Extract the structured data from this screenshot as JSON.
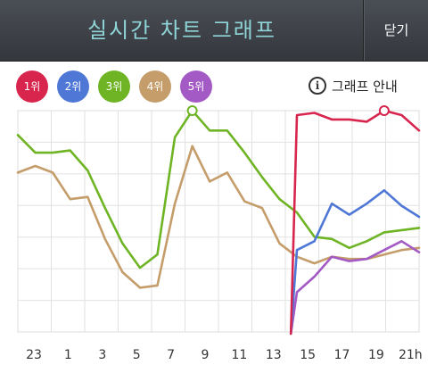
{
  "header": {
    "title": "실시간 차트 그래프",
    "close_label": "닫기"
  },
  "legend": [
    {
      "label": "1위",
      "color": "#d8254e"
    },
    {
      "label": "2위",
      "color": "#4f78d6"
    },
    {
      "label": "3위",
      "color": "#6eb424"
    },
    {
      "label": "4위",
      "color": "#c49d6a"
    },
    {
      "label": "5위",
      "color": "#a35ac4"
    }
  ],
  "guide": {
    "icon": "info-icon",
    "glyph": "i",
    "label": "그래프 안내"
  },
  "chart_data": {
    "type": "line",
    "x_tick_labels": [
      "23",
      "1",
      "3",
      "5",
      "7",
      "9",
      "11",
      "13",
      "15",
      "17",
      "19",
      "21h"
    ],
    "x": [
      22,
      23,
      0,
      1,
      2,
      3,
      4,
      5,
      6,
      7,
      8,
      9,
      10,
      11,
      12,
      13,
      14,
      15,
      16,
      17,
      18,
      19,
      20,
      21
    ],
    "y_direction": "rank position, top = best",
    "grid": true,
    "series": [
      {
        "name": "1위",
        "color": "#d8254e",
        "values": [
          null,
          null,
          null,
          null,
          null,
          null,
          null,
          null,
          null,
          null,
          null,
          null,
          null,
          null,
          null,
          null,
          98,
          99,
          96,
          96,
          95,
          100,
          98,
          91
        ],
        "peak_marker_index": 21
      },
      {
        "name": "2위",
        "color": "#4f78d6",
        "values": [
          null,
          null,
          null,
          null,
          null,
          null,
          null,
          null,
          null,
          null,
          null,
          null,
          null,
          null,
          null,
          null,
          37,
          41,
          58,
          53,
          58,
          64,
          57,
          52
        ]
      },
      {
        "name": "3위",
        "color": "#6eb424",
        "values": [
          89,
          81,
          81,
          82,
          73,
          56,
          40,
          29,
          35,
          88,
          100,
          91,
          91,
          81,
          70,
          60,
          54,
          43,
          42,
          38,
          41,
          45,
          46,
          47
        ],
        "peak_marker_index": 10
      },
      {
        "name": "4위",
        "color": "#c49d6a",
        "values": [
          72,
          75,
          72,
          60,
          61,
          42,
          27,
          20,
          21,
          58,
          84,
          68,
          72,
          59,
          56,
          40,
          34,
          31,
          34,
          33,
          33,
          35,
          37,
          38
        ]
      },
      {
        "name": "5위",
        "color": "#a35ac4",
        "values": [
          null,
          null,
          null,
          null,
          null,
          null,
          null,
          null,
          null,
          null,
          null,
          null,
          null,
          null,
          null,
          null,
          18,
          25,
          34,
          32,
          33,
          37,
          41,
          36
        ]
      }
    ]
  }
}
